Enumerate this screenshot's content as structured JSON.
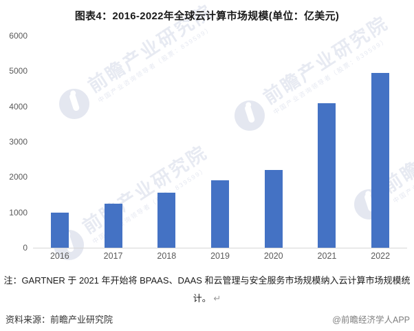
{
  "title": "图表4：2016-2022年全球云计算市场规模(单位：亿美元)",
  "chart_data": {
    "type": "bar",
    "title": "图表4：2016-2022年全球云计算市场规模(单位：亿美元)",
    "unit": "亿美元",
    "categories": [
      "2016",
      "2017",
      "2018",
      "2019",
      "2020",
      "2021",
      "2022"
    ],
    "values": [
      1000,
      1250,
      1550,
      1900,
      2200,
      4100,
      4950
    ],
    "xlabel": "",
    "ylabel": "",
    "ylim": [
      0,
      6000
    ],
    "yticks": [
      0,
      1000,
      2000,
      3000,
      4000,
      5000,
      6000
    ],
    "grid": false,
    "legend": false,
    "bar_color": "#4472C4"
  },
  "note": {
    "text": "注：GARTNER 于 2021 年开始将 BPAAS、DAAS 和云管理与安全服务市场规模纳入云计算市场规模统计。",
    "return_mark": "↵"
  },
  "footer": {
    "source": "资料来源：前瞻产业研究院",
    "credit": "@前瞻经济学人APP"
  },
  "watermark": {
    "brand": "前瞻产业研究院",
    "tagline": "中国产业咨询领导者（股票：839599）"
  },
  "colors": {
    "bar": "#4472C4",
    "axis_line": "#d6d6d6",
    "tick_label": "#595959",
    "title_text": "#1a1a1a",
    "watermark": "#e8ebf4"
  }
}
